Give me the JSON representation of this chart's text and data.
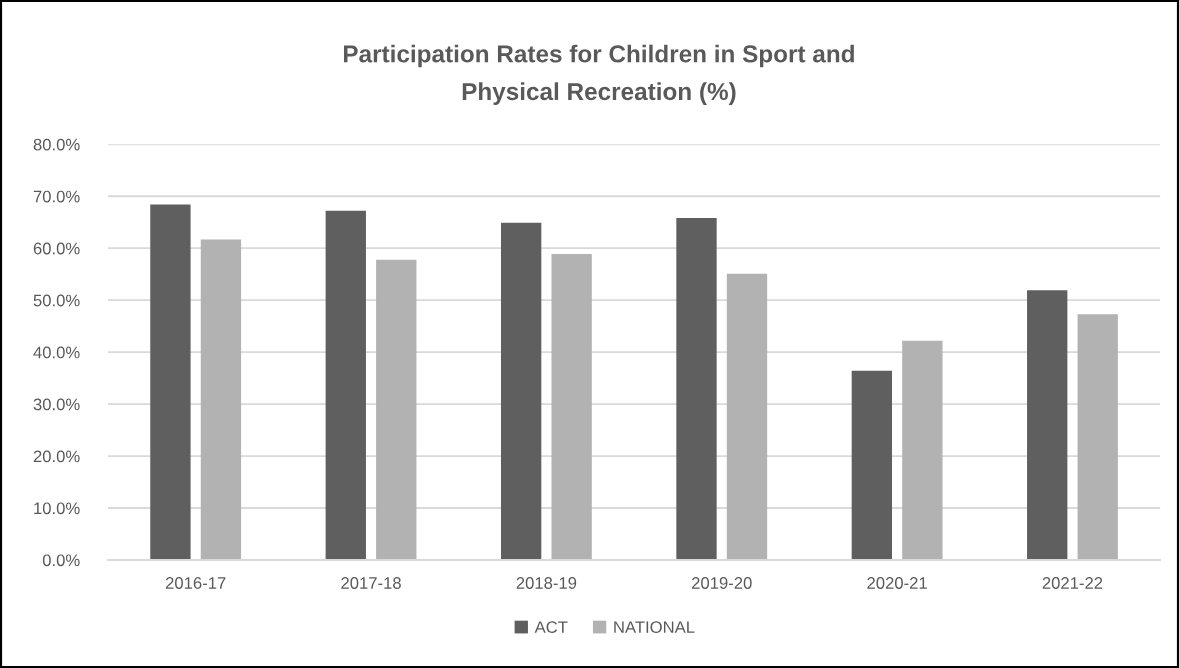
{
  "chart_data": {
    "type": "bar",
    "title": "Participation Rates for Children in Sport and\nPhysical Recreation (%)",
    "categories": [
      "2016-17",
      "2017-18",
      "2018-19",
      "2019-20",
      "2020-21",
      "2021-22"
    ],
    "series": [
      {
        "name": "ACT",
        "color": "#5f5f5f",
        "values": [
          68.4,
          67.2,
          64.9,
          65.8,
          36.4,
          51.9
        ]
      },
      {
        "name": "NATIONAL",
        "color": "#b2b2b2",
        "values": [
          61.7,
          57.8,
          58.9,
          55.1,
          42.2,
          47.3
        ]
      }
    ],
    "ylim": [
      0,
      80
    ],
    "yticks": [
      {
        "value": 0,
        "label": "0.0%"
      },
      {
        "value": 10,
        "label": "10.0%"
      },
      {
        "value": 20,
        "label": "20.0%"
      },
      {
        "value": 30,
        "label": "30.0%"
      },
      {
        "value": 40,
        "label": "40.0%"
      },
      {
        "value": 50,
        "label": "50.0%"
      },
      {
        "value": 60,
        "label": "60.0%"
      },
      {
        "value": 70,
        "label": "70.0%"
      },
      {
        "value": 80,
        "label": "80.0%"
      }
    ],
    "grid": "y",
    "legend": "bottom"
  }
}
